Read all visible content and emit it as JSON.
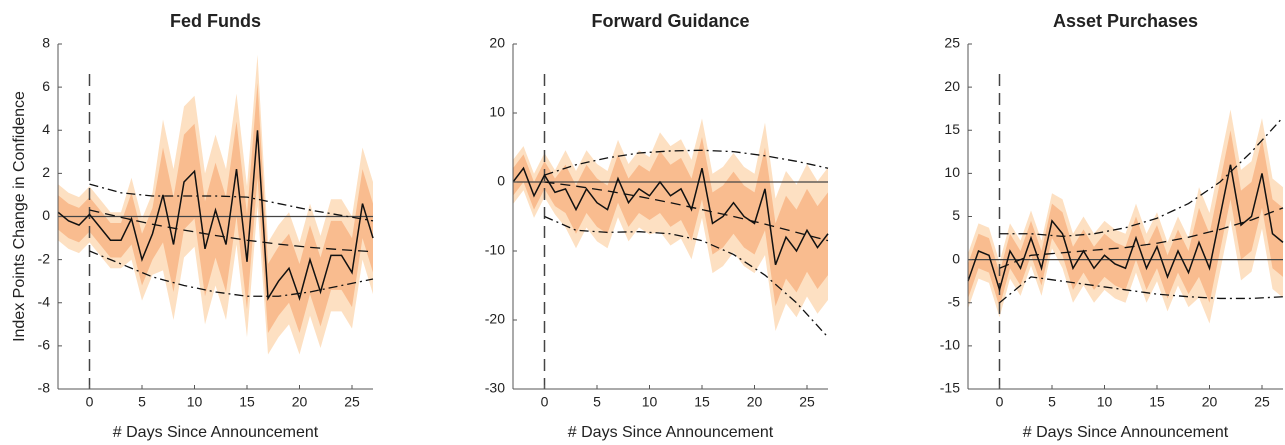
{
  "chart_data": [
    {
      "type": "line",
      "title": "Fed Funds",
      "xlabel": "# Days Since Announcement",
      "ylabel": "Index Points Change in Confidence",
      "x": [
        -3,
        -2,
        -1,
        0,
        1,
        2,
        3,
        4,
        5,
        6,
        7,
        8,
        9,
        10,
        11,
        12,
        13,
        14,
        15,
        16,
        17,
        18,
        19,
        20,
        21,
        22,
        23,
        24,
        25,
        26,
        27
      ],
      "xlim": [
        -3,
        27
      ],
      "xticks": [
        0,
        5,
        10,
        15,
        20,
        25
      ],
      "ylim": [
        -8,
        8
      ],
      "yticks": [
        -8,
        -6,
        -4,
        -2,
        0,
        2,
        4,
        6,
        8
      ],
      "hline": 0,
      "vline": 0,
      "series": [
        {
          "style": "band",
          "color": "#fde0c2",
          "lower": [
            -1.1,
            -1.5,
            -1.7,
            -1.2,
            -1.8,
            -2.4,
            -2.4,
            -2.0,
            -3.9,
            -2.7,
            -2.5,
            -4.8,
            -1.9,
            -1.4,
            -5.0,
            -3.2,
            -4.8,
            -1.3,
            -5.6,
            0.5,
            -6.4,
            -5.6,
            -5.0,
            -6.4,
            -4.6,
            -6.1,
            -4.4,
            -4.4,
            -5.2,
            -2.0,
            -3.6
          ],
          "upper": [
            1.5,
            1.1,
            0.9,
            1.4,
            0.8,
            0.2,
            0.2,
            1.8,
            -0.1,
            1.1,
            4.5,
            2.2,
            5.1,
            5.6,
            2.0,
            3.8,
            2.2,
            5.7,
            1.4,
            7.5,
            -1.2,
            -0.4,
            0.2,
            -1.2,
            0.6,
            -0.9,
            0.8,
            0.8,
            0,
            3.2,
            1.6
          ]
        },
        {
          "style": "band",
          "color": "#f9bc8f",
          "lower": [
            -0.6,
            -1.0,
            -1.2,
            -0.7,
            -1.3,
            -1.9,
            -1.9,
            -1.3,
            -3.2,
            -2.0,
            -1.2,
            -3.5,
            -0.6,
            -0.1,
            -3.7,
            -1.9,
            -3.5,
            0.0,
            -4.3,
            1.8,
            -5.4,
            -4.6,
            -4.0,
            -5.4,
            -3.6,
            -5.1,
            -3.4,
            -3.4,
            -4.2,
            -1.0,
            -2.6
          ],
          "upper": [
            1.0,
            0.6,
            0.4,
            0.9,
            0.3,
            -0.3,
            -0.3,
            1.1,
            -0.8,
            0.4,
            3.2,
            0.9,
            3.8,
            4.3,
            0.7,
            2.5,
            0.9,
            4.4,
            0.1,
            6.2,
            -2.2,
            -1.4,
            -0.8,
            -2.2,
            -0.4,
            -1.9,
            -0.2,
            -0.2,
            -1.0,
            2.2,
            0.6
          ]
        },
        {
          "style": "solid",
          "color": "#111111",
          "values": [
            0.2,
            -0.2,
            -0.4,
            0.1,
            -0.5,
            -1.1,
            -1.1,
            -0.1,
            -2.0,
            -0.8,
            1.0,
            -1.3,
            1.6,
            2.1,
            -1.5,
            0.3,
            -1.3,
            2.2,
            -2.1,
            4.0,
            -3.8,
            -3.0,
            -2.4,
            -3.8,
            -2.0,
            -3.5,
            -1.8,
            -1.8,
            -2.6,
            0.6,
            -1.0
          ]
        },
        {
          "style": "dashed",
          "color": "#111111",
          "x": [
            0,
            3,
            6,
            9,
            12,
            15,
            18,
            21,
            24,
            27
          ],
          "values": [
            0.3,
            -0.04,
            -0.36,
            -0.63,
            -0.88,
            -1.1,
            -1.28,
            -1.43,
            -1.54,
            -1.63
          ]
        },
        {
          "style": "dashdot",
          "color": "#111111",
          "x": [
            0,
            3,
            6,
            9,
            12,
            15,
            18,
            21,
            24,
            27
          ],
          "values": [
            1.5,
            1.1,
            0.95,
            0.95,
            0.95,
            0.9,
            0.6,
            0.3,
            0.05,
            -0.2
          ]
        },
        {
          "style": "dashdot",
          "color": "#111111",
          "x": [
            0,
            3,
            6,
            9,
            12,
            15,
            18,
            21,
            24,
            27
          ],
          "values": [
            -1.6,
            -2.2,
            -2.8,
            -3.2,
            -3.5,
            -3.7,
            -3.7,
            -3.5,
            -3.2,
            -2.9
          ]
        }
      ]
    },
    {
      "type": "line",
      "title": "Forward Guidance",
      "xlabel": "# Days Since Announcement",
      "x": [
        -3,
        -2,
        -1,
        0,
        1,
        2,
        3,
        4,
        5,
        6,
        7,
        8,
        9,
        10,
        11,
        12,
        13,
        14,
        15,
        16,
        17,
        18,
        19,
        20,
        21,
        22,
        23,
        24,
        25,
        26,
        27
      ],
      "xlim": [
        -3,
        27
      ],
      "xticks": [
        0,
        5,
        10,
        15,
        20,
        25
      ],
      "ylim": [
        -30,
        20
      ],
      "yticks": [
        -30,
        -20,
        -10,
        0,
        10,
        20
      ],
      "hline": 0,
      "vline": 0,
      "series": [
        {
          "style": "band",
          "color": "#fde0c2",
          "lower": [
            -3.2,
            -1.2,
            -5.2,
            -2.2,
            -4.7,
            -6.6,
            -9.6,
            -6.6,
            -8.6,
            -9.6,
            -5.1,
            -8.6,
            -6.6,
            -7.6,
            -7.2,
            -9.2,
            -8.2,
            -11.2,
            -5.2,
            -13.2,
            -12.2,
            -10.2,
            -12.2,
            -13.2,
            -10.6,
            -21.6,
            -17.6,
            -19.6,
            -16.6,
            -19.1,
            -17.1
          ],
          "upper": [
            3.2,
            5.2,
            1.2,
            4.2,
            1.7,
            4.6,
            1.6,
            4.6,
            2.6,
            1.6,
            6.1,
            2.6,
            4.6,
            3.6,
            7.2,
            5.2,
            6.2,
            3.2,
            9.2,
            1.2,
            2.2,
            4.2,
            2.2,
            1.2,
            8.6,
            -2.4,
            1.6,
            -0.4,
            2.6,
            0.1,
            2.1
          ]
        },
        {
          "style": "band",
          "color": "#f9bc8f",
          "lower": [
            -2,
            0,
            -4,
            -1,
            -3.5,
            -4.5,
            -7.5,
            -4.5,
            -6.5,
            -7.5,
            -3,
            -6.5,
            -4.5,
            -5.5,
            -4.5,
            -6.5,
            -5.5,
            -8.5,
            -2.5,
            -10.5,
            -9.5,
            -7.5,
            -9.5,
            -10.5,
            -7,
            -18,
            -14,
            -16,
            -13,
            -15.5,
            -13.5
          ],
          "upper": [
            2,
            4,
            0,
            3,
            0.5,
            2.5,
            -0.5,
            2.5,
            0.5,
            -0.5,
            4,
            0.5,
            2.5,
            1.5,
            4.5,
            2.5,
            3.5,
            0.5,
            6.5,
            -1.5,
            -0.5,
            1.5,
            -0.5,
            -1.5,
            5,
            -6,
            -2,
            -4,
            -1,
            -3.5,
            -1.5
          ]
        },
        {
          "style": "solid",
          "color": "#111111",
          "values": [
            0,
            2,
            -2,
            1,
            -1.5,
            -1,
            -4,
            -1,
            -3,
            -4,
            0.5,
            -3,
            -1,
            -2,
            0,
            -2,
            -1,
            -4,
            2,
            -6,
            -5,
            -3,
            -5,
            -6,
            -1,
            -12,
            -8,
            -10,
            -7,
            -9.5,
            -7.5
          ]
        },
        {
          "style": "dashed",
          "color": "#111111",
          "x": [
            0,
            3,
            6,
            9,
            12,
            15,
            18,
            21,
            24,
            27
          ],
          "values": [
            0,
            -0.6,
            -1.3,
            -2.1,
            -3.0,
            -4.0,
            -5.0,
            -6.1,
            -7.3,
            -8.5
          ]
        },
        {
          "style": "dashdot",
          "color": "#111111",
          "x": [
            0,
            3,
            6,
            9,
            12,
            15,
            18,
            21,
            24,
            27
          ],
          "values": [
            1,
            2.5,
            3.5,
            4.2,
            4.5,
            4.6,
            4.4,
            3.8,
            3.0,
            2.0
          ]
        },
        {
          "style": "dashdot",
          "color": "#111111",
          "x": [
            0,
            3,
            6,
            9,
            12,
            15,
            18,
            21,
            24,
            27
          ],
          "values": [
            -5,
            -7,
            -7.3,
            -7.2,
            -7.5,
            -8.5,
            -10.5,
            -13.5,
            -17.5,
            -22.5
          ]
        }
      ]
    },
    {
      "type": "line",
      "title": "Asset Purchases",
      "xlabel": "# Days Since Announcement",
      "x": [
        -3,
        -2,
        -1,
        0,
        1,
        2,
        3,
        4,
        5,
        6,
        7,
        8,
        9,
        10,
        11,
        12,
        13,
        14,
        15,
        16,
        17,
        18,
        19,
        20,
        21,
        22,
        23,
        24,
        25,
        26,
        27
      ],
      "xlim": [
        -3,
        27
      ],
      "xticks": [
        0,
        5,
        10,
        15,
        20,
        25
      ],
      "ylim": [
        -15,
        25
      ],
      "yticks": [
        -15,
        -10,
        -5,
        0,
        5,
        10,
        15,
        20,
        25
      ],
      "hline": 0,
      "vline": 0,
      "series": [
        {
          "style": "band",
          "color": "#fde0c2",
          "lower": [
            -5.7,
            -2.2,
            -2.7,
            -6.7,
            -2.2,
            -4.2,
            -0.7,
            -4.2,
            1.3,
            -1,
            -5,
            -3,
            -5,
            -3.5,
            -4.5,
            -5,
            -1.5,
            -5,
            -2.5,
            -6,
            -3,
            -5.5,
            -4.4,
            -7.4,
            -1.4,
            4.6,
            -2.4,
            -1.4,
            3.6,
            -3.4,
            -4.4
          ],
          "upper": [
            0.7,
            4.2,
            3.7,
            -0.3,
            4.2,
            2.2,
            5.7,
            2.2,
            7.7,
            7,
            3,
            5,
            3,
            4.5,
            3.5,
            3,
            6.5,
            3,
            5.5,
            2,
            5,
            2.5,
            8.4,
            5.4,
            11.4,
            17.4,
            10.4,
            11.4,
            16.4,
            9.4,
            8.4
          ]
        },
        {
          "style": "band",
          "color": "#f9bc8f",
          "lower": [
            -4.5,
            -1,
            -1.5,
            -5.5,
            -1,
            -3,
            0.5,
            -3,
            2.5,
            0.5,
            -3.5,
            -1.5,
            -3.5,
            -2,
            -3,
            -3.5,
            0,
            -3.5,
            -1,
            -4.5,
            -1.5,
            -4,
            -2,
            -5,
            1,
            7,
            0,
            1,
            6,
            -1,
            -2
          ],
          "upper": [
            -0.5,
            3,
            2.5,
            -1.5,
            3,
            1,
            4.5,
            1,
            6.5,
            5.5,
            1.5,
            3.5,
            1.5,
            3,
            2,
            1.5,
            5,
            1.5,
            4,
            0.5,
            3.5,
            1,
            6,
            3,
            9,
            15,
            8,
            9,
            14,
            7,
            6
          ]
        },
        {
          "style": "solid",
          "color": "#111111",
          "values": [
            -2.5,
            1,
            0.5,
            -3.5,
            1,
            -1,
            2.5,
            -1,
            4.5,
            3,
            -1,
            1,
            -1,
            0.5,
            -0.5,
            -1,
            2.5,
            -1,
            1.5,
            -2,
            1,
            -1.5,
            2,
            -1,
            5,
            11,
            4,
            5,
            10,
            3,
            2
          ]
        },
        {
          "style": "dashed",
          "color": "#111111",
          "x": [
            0,
            3,
            6,
            9,
            12,
            15,
            18,
            21,
            24,
            27
          ],
          "values": [
            -1,
            0.5,
            0.8,
            1.1,
            1.4,
            1.9,
            2.6,
            3.5,
            4.6,
            6.0
          ]
        },
        {
          "style": "dashdot",
          "color": "#111111",
          "x": [
            0,
            3,
            6,
            9,
            12,
            15,
            18,
            21,
            24,
            27
          ],
          "values": [
            3,
            3,
            2.7,
            3,
            3.7,
            4.8,
            6.5,
            9,
            12.5,
            16.5
          ]
        },
        {
          "style": "dashdot",
          "color": "#111111",
          "x": [
            0,
            3,
            6,
            9,
            12,
            15,
            18,
            21,
            24,
            27
          ],
          "values": [
            -5,
            -2,
            -2.5,
            -3,
            -3.5,
            -4,
            -4.3,
            -4.5,
            -4.5,
            -4.3
          ]
        }
      ]
    }
  ]
}
